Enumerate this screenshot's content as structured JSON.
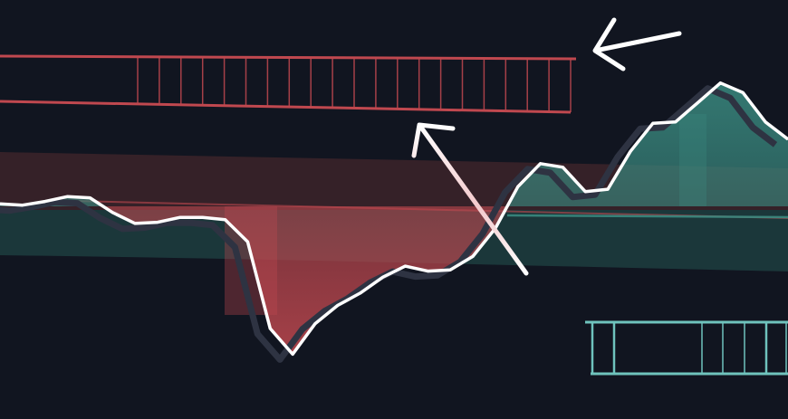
{
  "theme": {
    "background": "#111520",
    "bearish": "#c0484f",
    "bullish": "#3a8a80",
    "line": "#ffffff",
    "line_shadow": "#2e3342",
    "zone_red": "#3a2229",
    "zone_teal": "#1d3b3d"
  },
  "chart_data": {
    "type": "area",
    "title": "",
    "xlabel": "",
    "ylabel": "",
    "grid": false,
    "baseline": 0,
    "x": [
      0,
      1,
      2,
      3,
      4,
      5,
      6,
      7,
      8,
      9,
      10,
      11,
      12,
      13,
      14,
      15,
      16,
      17,
      18,
      19,
      20,
      21,
      22,
      23,
      24,
      25,
      26,
      27,
      28,
      29,
      30,
      31,
      32,
      33,
      34,
      35
    ],
    "series": [
      {
        "values": [
          0.2,
          0.1,
          0.4,
          0.8,
          0.7,
          -0.5,
          -1.4,
          -1.3,
          -0.9,
          -0.9,
          -1.1,
          -2.9,
          -10,
          -12.1,
          -9.6,
          -8.1,
          -7.1,
          -5.8,
          -4.9,
          -5.3,
          -5.2,
          -4.1,
          -1.8,
          1.6,
          3.5,
          3.2,
          1.2,
          1.4,
          4.5,
          6.8,
          6.9,
          8.5,
          10.1,
          9.3,
          6.9,
          5.5
        ]
      }
    ],
    "markers": {
      "ladder_upper": {
        "side": "bearish",
        "cells": 20
      },
      "ladder_lower": {
        "side": "bullish",
        "cells": 9
      }
    },
    "annotations": [
      {
        "type": "arrow",
        "points_to": "ladder_upper"
      },
      {
        "type": "arrow",
        "points_to": "ladder_upper"
      }
    ]
  }
}
